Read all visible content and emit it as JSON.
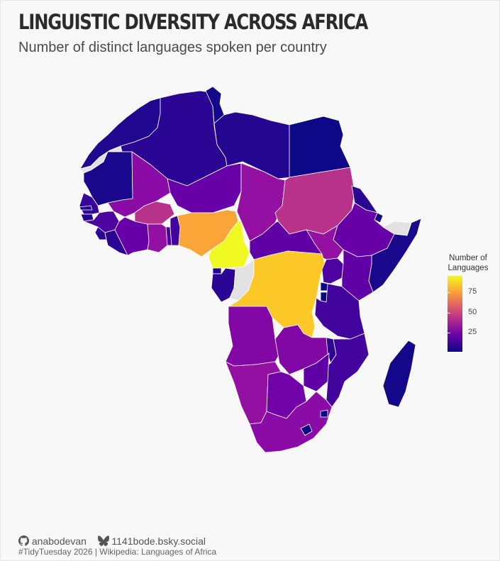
{
  "header": {
    "title": "LINGUISTIC DIVERSITY ACROSS AFRICA",
    "subtitle": "Number of distinct languages spoken per country"
  },
  "legend": {
    "title_line1": "Number of",
    "title_line2": "Languages",
    "ticks": [
      "75",
      "50",
      "25"
    ],
    "tick_values": [
      75,
      50,
      25
    ],
    "scale_min": 3,
    "scale_max": 90,
    "palette": "plasma",
    "missing_color": "#e2e2e2"
  },
  "caption": {
    "github_handle": "anabodevan",
    "bluesky_handle": "1141bode.bsky.social",
    "source": "#TidyTuesday 2026 | Wikipedia: Languages of Africa"
  },
  "map_data": {
    "countries": [
      {
        "name": "Morocco",
        "languages": 6
      },
      {
        "name": "Algeria",
        "languages": 8
      },
      {
        "name": "Tunisia",
        "languages": 4
      },
      {
        "name": "Libya",
        "languages": 7
      },
      {
        "name": "Egypt",
        "languages": 3
      },
      {
        "name": "Western Sahara",
        "languages": null
      },
      {
        "name": "Mauritania",
        "languages": 5
      },
      {
        "name": "Mali",
        "languages": 28
      },
      {
        "name": "Niger",
        "languages": 20
      },
      {
        "name": "Chad",
        "languages": 30
      },
      {
        "name": "Sudan",
        "languages": 40
      },
      {
        "name": "South Sudan",
        "languages": 30
      },
      {
        "name": "Eritrea",
        "languages": 8
      },
      {
        "name": "Djibouti",
        "languages": 4
      },
      {
        "name": "Ethiopia",
        "languages": 20
      },
      {
        "name": "Somalia",
        "languages": 5
      },
      {
        "name": "Somaliland",
        "languages": null
      },
      {
        "name": "Senegal",
        "languages": 10
      },
      {
        "name": "Gambia",
        "languages": 6
      },
      {
        "name": "Guinea-Bissau",
        "languages": 6
      },
      {
        "name": "Guinea",
        "languages": 14
      },
      {
        "name": "Sierra Leone",
        "languages": 8
      },
      {
        "name": "Liberia",
        "languages": 8
      },
      {
        "name": "Ivory Coast",
        "languages": 20
      },
      {
        "name": "Burkina Faso",
        "languages": 40
      },
      {
        "name": "Ghana",
        "languages": 30
      },
      {
        "name": "Togo",
        "languages": 14
      },
      {
        "name": "Benin",
        "languages": 12
      },
      {
        "name": "Nigeria",
        "languages": 72
      },
      {
        "name": "Cameroon",
        "languages": 90
      },
      {
        "name": "Central African Republic",
        "languages": 18
      },
      {
        "name": "Equatorial Guinea",
        "languages": 6
      },
      {
        "name": "Gabon",
        "languages": 8
      },
      {
        "name": "Republic of the Congo",
        "languages": null
      },
      {
        "name": "Democratic Republic of the Congo",
        "languages": 80
      },
      {
        "name": "Uganda",
        "languages": 14
      },
      {
        "name": "Kenya",
        "languages": 18
      },
      {
        "name": "Rwanda",
        "languages": 3
      },
      {
        "name": "Burundi",
        "languages": 3
      },
      {
        "name": "Tanzania",
        "languages": 12
      },
      {
        "name": "Angola",
        "languages": 26
      },
      {
        "name": "Zambia",
        "languages": 26
      },
      {
        "name": "Malawi",
        "languages": 8
      },
      {
        "name": "Mozambique",
        "languages": 12
      },
      {
        "name": "Namibia",
        "languages": 30
      },
      {
        "name": "Botswana",
        "languages": 22
      },
      {
        "name": "Zimbabwe",
        "languages": 18
      },
      {
        "name": "South Africa",
        "languages": 28
      },
      {
        "name": "Lesotho",
        "languages": 3
      },
      {
        "name": "Eswatini",
        "languages": 3
      },
      {
        "name": "Madagascar",
        "languages": 4
      }
    ]
  }
}
